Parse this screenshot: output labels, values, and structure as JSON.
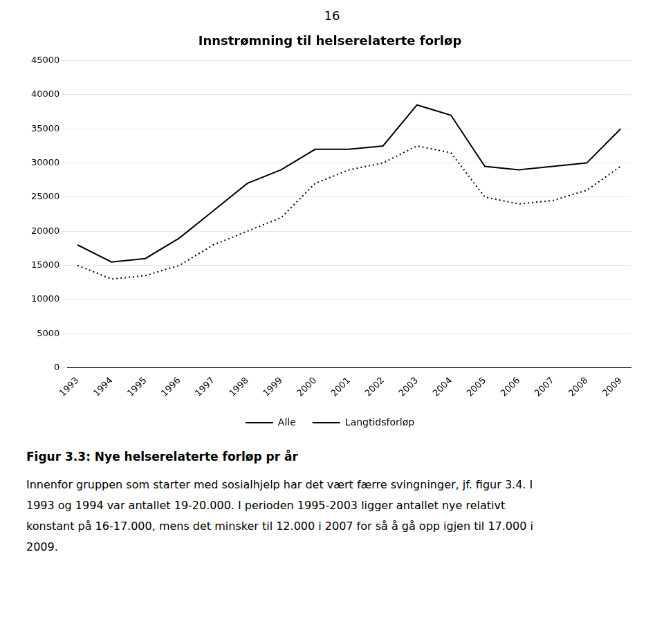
{
  "page_number": "16",
  "chart_data": {
    "type": "line",
    "title": "Innstrømning til helserelaterte forløp",
    "x": [
      1993,
      1994,
      1995,
      1996,
      1997,
      1998,
      1999,
      2000,
      2001,
      2002,
      2003,
      2004,
      2005,
      2006,
      2007,
      2008,
      2009
    ],
    "series": [
      {
        "name": "Alle",
        "color": "#000000",
        "line_style": "solid",
        "values": [
          18000,
          15500,
          16000,
          19000,
          23000,
          27000,
          29000,
          32000,
          32000,
          32500,
          38500,
          37000,
          29500,
          29000,
          29500,
          30000,
          35000
        ]
      },
      {
        "name": "Langtidsforløp",
        "color": "#000000",
        "line_style": "dotted",
        "values": [
          15000,
          13000,
          13500,
          15000,
          18000,
          20000,
          22000,
          27000,
          29000,
          30000,
          32500,
          31500,
          25000,
          24000,
          24500,
          26000,
          29500
        ]
      }
    ],
    "xlim": [
      1992.7,
      2009.3
    ],
    "xticks": [
      1993,
      1994,
      1995,
      1996,
      1997,
      1998,
      1999,
      2000,
      2001,
      2002,
      2003,
      2004,
      2005,
      2006,
      2007,
      2008,
      2009
    ],
    "ylim": [
      0,
      45000
    ],
    "yticks": [
      0,
      5000,
      10000,
      15000,
      20000,
      25000,
      30000,
      35000,
      40000,
      45000
    ],
    "grid": true,
    "legend": "bottom"
  },
  "caption": "Figur 3.3: Nye helserelaterte forløp pr år",
  "body_lines": [
    "Innenfor gruppen som starter med sosialhjelp har det vært færre svingninger, jf. figur 3.4. I",
    "1993 og 1994 var antallet 19-20.000. I perioden 1995-2003 ligger antallet nye relativt",
    "konstant på 16-17.000, mens det minsker til 12.000 i 2007 for så å gå opp igjen til 17.000 i",
    "2009."
  ]
}
